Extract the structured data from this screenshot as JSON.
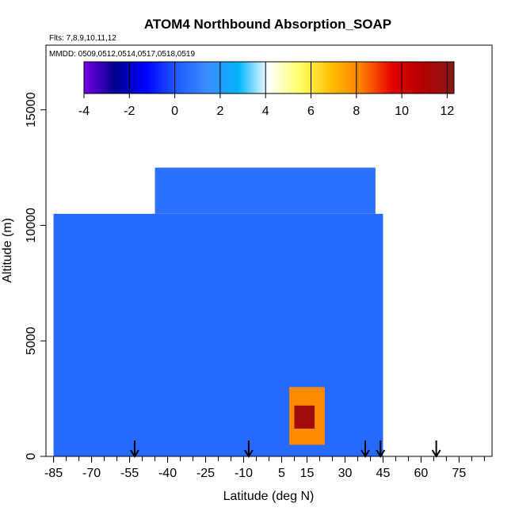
{
  "chart_data": {
    "type": "heatmap",
    "title": "ATOM4 Northbound Absorption_SOAP",
    "flights_label": "Flts: 7,8,9,10,11,12",
    "dates_label": "MMDD: 0509,0512,0514,0517,0518,0519",
    "xlabel": "Latitude (deg N)",
    "ylabel": "Altitude (m)",
    "xlim": [
      -88,
      88
    ],
    "ylim": [
      0,
      17800
    ],
    "x_ticks": [
      -85,
      -70,
      -55,
      -40,
      -25,
      -10,
      5,
      15,
      30,
      45,
      60,
      75
    ],
    "y_ticks": [
      0,
      5000,
      10000,
      15000
    ],
    "colorbar": {
      "min": -4,
      "max": 12.3,
      "ticks": [
        -4,
        -2,
        0,
        2,
        4,
        6,
        8,
        10,
        12
      ],
      "colors": [
        "#7a00e6",
        "#00008b",
        "#0000ff",
        "#1e5aff",
        "#3c8cff",
        "#00b4ff",
        "#ffffff",
        "#ffff66",
        "#ffc000",
        "#ff7f00",
        "#e60000",
        "#b00000",
        "#8b1a1a"
      ]
    },
    "series": [
      {
        "values": [
          {
            "lat": -85,
            "alt": 0,
            "lat2": 45,
            "alt2": 10500,
            "value": 0.5
          },
          {
            "lat": -45,
            "alt": 10500,
            "lat2": 42,
            "alt2": 12500,
            "value": 0.7
          },
          {
            "lat": 8,
            "alt": 500,
            "lat2": 22,
            "alt2": 3000,
            "value": 8
          },
          {
            "lat": 10,
            "alt": 1200,
            "lat2": 18,
            "alt2": 2200,
            "value": 11.5
          }
        ]
      }
    ],
    "northbound_marker_lats": [
      -53,
      -8,
      38,
      44,
      66
    ]
  }
}
